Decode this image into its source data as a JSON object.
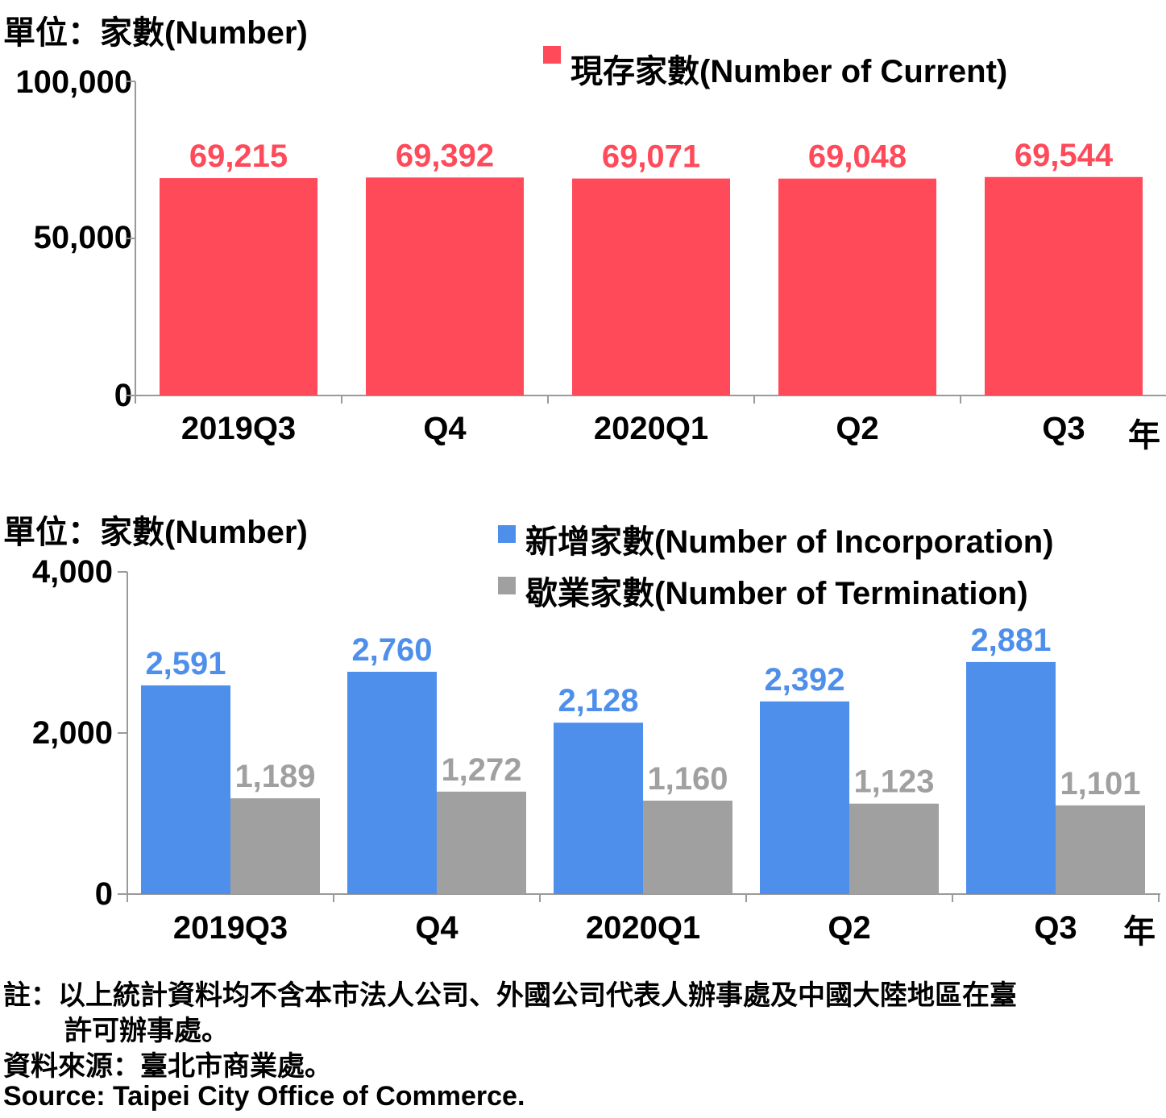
{
  "colors": {
    "current": "#ff4a5a",
    "incorporation": "#4f8fec",
    "termination": "#a0a0a0",
    "axis": "#9a9a9a"
  },
  "chart_data": [
    {
      "type": "bar",
      "unit_label": "單位：家數(Number)",
      "x_suffix": "年",
      "categories": [
        "2019Q3",
        "Q4",
        "2020Q1",
        "Q2",
        "Q3"
      ],
      "ylim": [
        0,
        100000
      ],
      "yticks": [
        {
          "value": 0,
          "label": "0"
        },
        {
          "value": 50000,
          "label": "50,000"
        },
        {
          "value": 100000,
          "label": "100,000"
        }
      ],
      "legend_position": "top-right",
      "series": [
        {
          "name": "現存家數(Number of Current)",
          "values": [
            69215,
            69392,
            69071,
            69048,
            69544
          ],
          "labels": [
            "69,215",
            "69,392",
            "69,071",
            "69,048",
            "69,544"
          ]
        }
      ]
    },
    {
      "type": "bar",
      "unit_label": "單位：家數(Number)",
      "x_suffix": "年",
      "categories": [
        "2019Q3",
        "Q4",
        "2020Q1",
        "Q2",
        "Q3"
      ],
      "ylim": [
        0,
        4000
      ],
      "yticks": [
        {
          "value": 0,
          "label": "0"
        },
        {
          "value": 2000,
          "label": "2,000"
        },
        {
          "value": 4000,
          "label": "4,000"
        }
      ],
      "legend_position": "top-right",
      "series": [
        {
          "name": "新增家數(Number of Incorporation)",
          "values": [
            2591,
            2760,
            2128,
            2392,
            2881
          ],
          "labels": [
            "2,591",
            "2,760",
            "2,128",
            "2,392",
            "2,881"
          ]
        },
        {
          "name": "歇業家數(Number of Termination)",
          "values": [
            1189,
            1272,
            1160,
            1123,
            1101
          ],
          "labels": [
            "1,189",
            "1,272",
            "1,160",
            "1,123",
            "1,101"
          ]
        }
      ]
    }
  ],
  "notes": {
    "line1": "註：以上統計資料均不含本市法人公司、外國公司代表人辦事處及中國大陸地區在臺",
    "line2": "許可辦事處。",
    "source_zh": "資料來源：臺北市商業處。",
    "source_en": "Source: Taipei City Office of Commerce."
  }
}
